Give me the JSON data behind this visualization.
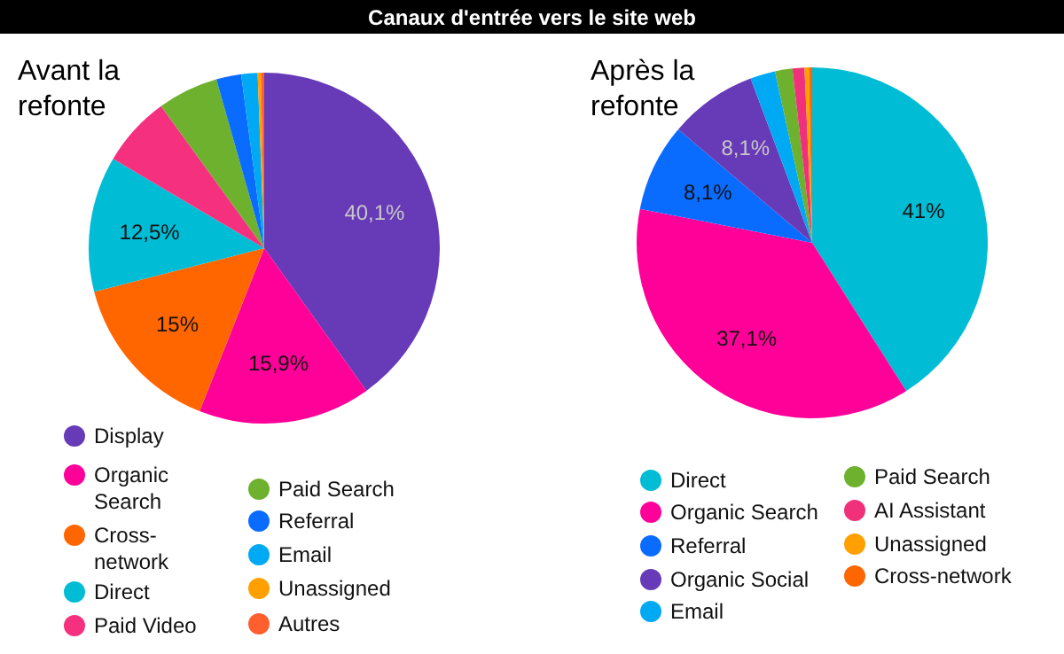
{
  "chart_data": [
    {
      "type": "pie",
      "title": "Canaux d'entrée vers le site web",
      "subtitle": "Avant la refonte",
      "categories": [
        "Display",
        "Organic Search",
        "Cross-network",
        "Direct",
        "Paid Video",
        "Paid Search",
        "Referral",
        "Email",
        "Unassigned",
        "Autres"
      ],
      "values": [
        40.1,
        15.9,
        15,
        12.5,
        6.5,
        5.6,
        2.3,
        1.5,
        0.3,
        0.3
      ],
      "value_labels": [
        "40,1%",
        "15,9%",
        "15%",
        "12,5%",
        null,
        null,
        null,
        null,
        null,
        null
      ],
      "colors": [
        "#673ab7",
        "#ff0099",
        "#ff6600",
        "#00bcd4",
        "#f5317f",
        "#6db12f",
        "#0a6cff",
        "#00a9f4",
        "#ffa000",
        "#ff5f2e"
      ],
      "legend": "bottom"
    },
    {
      "type": "pie",
      "subtitle": "Après la refonte",
      "categories": [
        "Direct",
        "Organic Search",
        "Referral",
        "Organic Social",
        "Email",
        "Paid Search",
        "AI Assistant",
        "Unassigned",
        "Cross-network"
      ],
      "values": [
        41,
        37.1,
        8.1,
        8.1,
        2.3,
        1.6,
        1.1,
        0.4,
        0.3
      ],
      "value_labels": [
        "41%",
        "37,1%",
        "8,1%",
        "8,1%",
        null,
        null,
        null,
        null,
        null
      ],
      "colors": [
        "#00bcd4",
        "#ff0099",
        "#0a6cff",
        "#673ab7",
        "#00a9f4",
        "#6db12f",
        "#f0307a",
        "#ffa000",
        "#ff6600"
      ],
      "legend": "bottom"
    }
  ]
}
